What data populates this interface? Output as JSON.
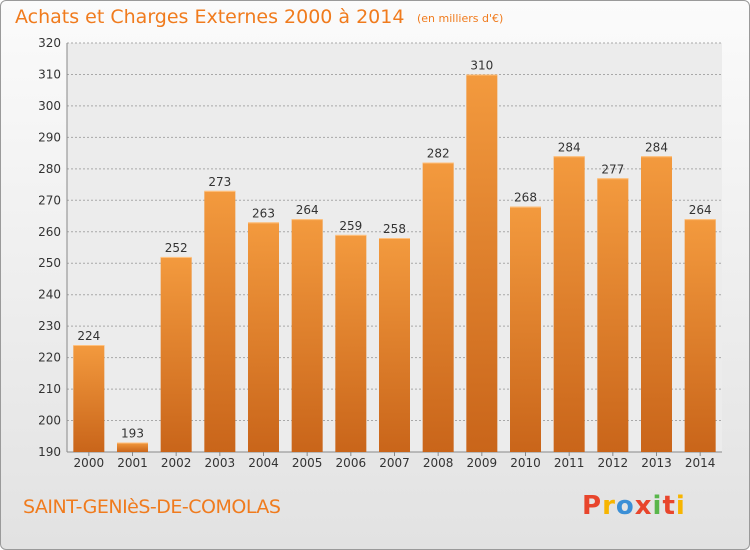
{
  "chart_data": {
    "type": "bar",
    "title": "Achats et Charges Externes 2000 à 2014",
    "subtitle": "(en milliers d'€)",
    "categories": [
      "2000",
      "2001",
      "2002",
      "2003",
      "2004",
      "2005",
      "2006",
      "2007",
      "2008",
      "2009",
      "2010",
      "2011",
      "2012",
      "2013",
      "2014"
    ],
    "values": [
      224,
      193,
      252,
      273,
      263,
      264,
      259,
      258,
      282,
      310,
      268,
      284,
      277,
      284,
      264
    ],
    "ylim": [
      190,
      320
    ],
    "yticks": [
      190,
      200,
      210,
      220,
      230,
      240,
      250,
      260,
      270,
      280,
      290,
      300,
      310,
      320
    ],
    "grid": true,
    "bar_color": "#f39a3e",
    "bar_color_dark": "#c9651a"
  },
  "footer": {
    "commune": "SAINT-GENIèS-DE-COMOLAS",
    "logo": "Proxiti",
    "logo_colors": [
      "#e8452c",
      "#f7b500",
      "#3b8fd6",
      "#e8452c",
      "#59b64b",
      "#e8452c",
      "#f7b500"
    ]
  }
}
